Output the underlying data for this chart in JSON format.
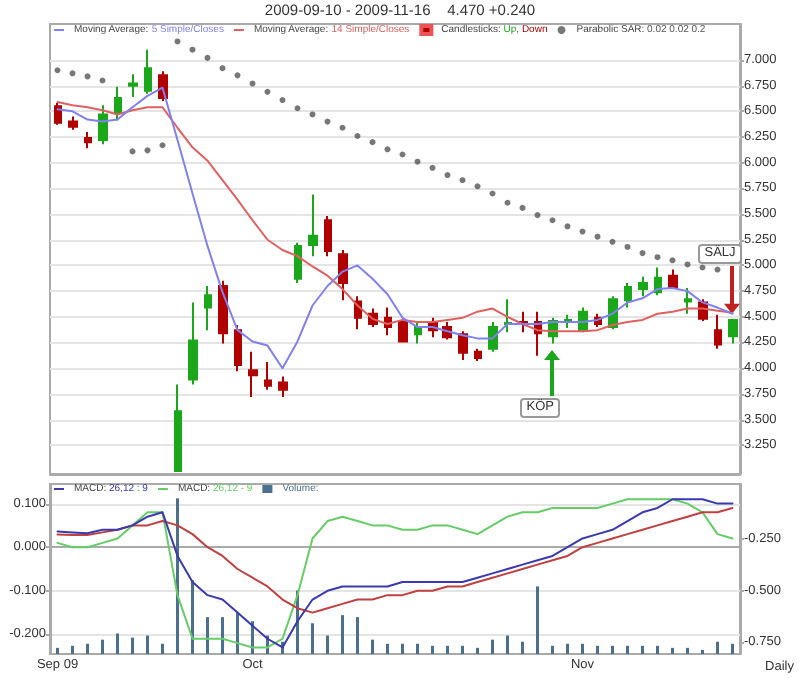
{
  "chart_data": [
    {
      "type": "candlestick",
      "title": "2009-09-10 - 2009-11-16    4.470 +0.240",
      "categories": [
        null,
        null,
        null,
        null,
        null,
        null,
        null,
        null,
        null,
        null,
        null,
        null,
        null,
        null,
        null,
        null,
        null,
        null,
        null,
        null,
        null,
        null,
        null,
        null,
        null,
        null,
        null,
        null,
        null,
        null,
        null,
        null,
        null,
        null,
        null,
        null,
        null,
        null,
        null,
        null,
        null,
        null,
        null,
        null,
        null,
        null
      ],
      "ylim": [
        2.97,
        7.35
      ],
      "yticks": [
        {
          "value": 3.25,
          "label": "3.250"
        },
        {
          "value": 3.5,
          "label": "3.500"
        },
        {
          "value": 3.75,
          "label": "3.750"
        },
        {
          "value": 4.0,
          "label": "4.000"
        },
        {
          "value": 4.25,
          "label": "4.250"
        },
        {
          "value": 4.5,
          "label": "4.500"
        },
        {
          "value": 4.75,
          "label": "4.750"
        },
        {
          "value": 5.0,
          "label": "5.000"
        },
        {
          "value": 5.25,
          "label": "5.250"
        },
        {
          "value": 5.5,
          "label": "5.500"
        },
        {
          "value": 5.75,
          "label": "5.750"
        },
        {
          "value": 6.0,
          "label": "6.000"
        },
        {
          "value": 6.25,
          "label": "6.250"
        },
        {
          "value": 6.5,
          "label": "6.500"
        },
        {
          "value": 6.75,
          "label": "6.750"
        },
        {
          "value": 7.0,
          "label": "7.000"
        }
      ],
      "tick_labels": "y",
      "grid": "y",
      "legend": "top left",
      "marker": "none",
      "series": [
        {
          "type": "line",
          "name": "Moving Average: 5 Simple/Closes",
          "color": "#8080f0",
          "values": [
            6.52,
            6.5,
            6.42,
            6.4,
            6.42,
            6.54,
            6.65,
            6.73,
            6.22,
            5.7,
            5.19,
            4.74,
            4.37,
            4.26,
            4.22,
            4.0,
            4.26,
            4.61,
            4.8,
            4.94,
            5.0,
            4.87,
            4.72,
            4.49,
            4.4,
            4.4,
            4.36,
            4.32,
            4.29,
            4.29,
            4.43,
            4.43,
            4.43,
            4.45,
            4.45,
            4.45,
            4.47,
            4.53,
            4.64,
            4.68,
            4.77,
            4.78,
            4.75,
            4.64,
            4.59,
            4.53
          ]
        },
        {
          "type": "line",
          "name": "Moving Average: 14 Simple/Closes",
          "color": "#e06060",
          "values": [
            6.59,
            6.56,
            6.54,
            6.51,
            6.47,
            6.51,
            6.54,
            6.54,
            6.34,
            6.15,
            6.02,
            5.83,
            5.64,
            5.44,
            5.25,
            5.15,
            5.09,
            4.99,
            4.9,
            4.77,
            4.61,
            4.48,
            4.43,
            4.47,
            4.45,
            4.45,
            4.47,
            4.49,
            4.55,
            4.58,
            4.5,
            4.43,
            4.37,
            4.36,
            4.36,
            4.36,
            4.37,
            4.42,
            4.45,
            4.47,
            4.53,
            4.55,
            4.58,
            4.58,
            4.56,
            4.54
          ]
        },
        {
          "name": "Candlesticks: Up, Down",
          "colors": [
            "#b00000",
            "#b00000",
            "#b00000",
            "#1aa81a",
            "#1aa81a",
            "#1aa81a",
            "#1aa81a",
            "#b00000",
            "#1aa81a",
            "#1aa81a",
            "#1aa81a",
            "#b00000",
            "#b00000",
            "#b00000",
            "#b00000",
            "#b00000",
            "#1aa81a",
            "#1aa81a",
            "#b00000",
            "#b00000",
            "#b00000",
            "#b00000",
            "#b00000",
            "#b00000",
            "#1aa81a",
            "#b00000",
            "#b00000",
            "#b00000",
            "#b00000",
            "#1aa81a",
            "#1aa81a",
            "#b00000",
            "#b00000",
            "#1aa81a",
            "#1aa81a",
            "#1aa81a",
            "#b00000",
            "#1aa81a",
            "#1aa81a",
            "#1aa81a",
            "#1aa81a",
            "#b00000",
            "#1aa81a",
            "#b00000",
            "#b00000",
            "#1aa81a"
          ],
          "ohlc": [
            [
              6.55,
              6.58,
              6.37,
              6.39
            ],
            [
              6.4,
              6.45,
              6.32,
              6.35
            ],
            [
              6.24,
              6.3,
              6.14,
              6.2
            ],
            [
              6.22,
              6.56,
              6.18,
              6.47
            ],
            [
              6.49,
              6.74,
              6.41,
              6.63
            ],
            [
              6.75,
              6.86,
              6.64,
              6.77
            ],
            [
              6.7,
              7.1,
              6.67,
              6.92
            ],
            [
              6.85,
              6.89,
              6.6,
              6.63
            ],
            [
              3.0,
              3.84,
              3.0,
              3.58
            ],
            [
              3.89,
              4.64,
              3.84,
              4.27
            ],
            [
              4.59,
              4.8,
              4.37,
              4.71
            ],
            [
              4.8,
              4.85,
              4.24,
              4.34
            ],
            [
              4.37,
              4.42,
              3.97,
              4.03
            ],
            [
              3.98,
              4.16,
              3.72,
              3.93
            ],
            [
              3.88,
              4.06,
              3.79,
              3.83
            ],
            [
              3.86,
              3.92,
              3.72,
              3.79
            ],
            [
              4.87,
              5.22,
              4.83,
              5.19
            ],
            [
              5.2,
              5.69,
              5.09,
              5.29
            ],
            [
              5.44,
              5.48,
              5.09,
              5.14
            ],
            [
              5.11,
              5.15,
              4.66,
              4.83
            ],
            [
              4.65,
              4.7,
              4.38,
              4.49
            ],
            [
              4.53,
              4.58,
              4.4,
              4.43
            ],
            [
              4.49,
              4.59,
              4.32,
              4.4
            ],
            [
              4.45,
              4.49,
              4.26,
              4.26
            ],
            [
              4.33,
              4.45,
              4.24,
              4.4
            ],
            [
              4.45,
              4.49,
              4.3,
              4.37
            ],
            [
              4.4,
              4.45,
              4.28,
              4.3
            ],
            [
              4.33,
              4.36,
              4.08,
              4.15
            ],
            [
              4.16,
              4.19,
              4.07,
              4.1
            ],
            [
              4.19,
              4.45,
              4.16,
              4.4
            ],
            [
              4.43,
              4.67,
              4.35,
              4.44
            ],
            [
              4.45,
              4.55,
              4.35,
              4.43
            ],
            [
              4.45,
              4.55,
              4.12,
              4.34
            ],
            [
              4.31,
              4.49,
              4.24,
              4.46
            ],
            [
              4.45,
              4.52,
              4.39,
              4.47
            ],
            [
              4.37,
              4.59,
              4.35,
              4.55
            ],
            [
              4.49,
              4.53,
              4.4,
              4.43
            ],
            [
              4.4,
              4.7,
              4.38,
              4.67
            ],
            [
              4.66,
              4.83,
              4.59,
              4.79
            ],
            [
              4.77,
              4.89,
              4.7,
              4.83
            ],
            [
              4.74,
              4.98,
              4.71,
              4.88
            ],
            [
              4.9,
              4.96,
              4.78,
              4.79
            ],
            [
              4.65,
              4.78,
              4.53,
              4.67
            ],
            [
              4.64,
              4.67,
              4.46,
              4.48
            ],
            [
              4.37,
              4.52,
              4.19,
              4.23
            ],
            [
              4.31,
              4.48,
              4.24,
              4.47
            ]
          ]
        },
        {
          "type": "scatter",
          "name": "Parabolic SAR: 0.02 0.02 0.2",
          "color": "#555555",
          "marker": "circle",
          "values": [
            6.9,
            6.87,
            6.84,
            6.8,
            null,
            6.11,
            6.12,
            6.17,
            7.18,
            7.1,
            7.02,
            6.92,
            6.85,
            6.77,
            6.69,
            6.61,
            6.53,
            6.47,
            6.4,
            6.34,
            6.26,
            6.2,
            6.13,
            6.08,
            6.01,
            5.95,
            5.88,
            5.83,
            5.77,
            5.7,
            5.61,
            5.56,
            5.49,
            5.44,
            5.38,
            5.33,
            5.28,
            5.23,
            5.18,
            5.12,
            5.08,
            5.05,
            5.01,
            4.98,
            4.96,
            null
          ]
        }
      ],
      "annotations": [
        {
          "text": "KÖP",
          "y": 3.61
        },
        {
          "text": "SÄLJ",
          "y": 5.12
        }
      ]
    },
    {
      "type": "line",
      "categories": [
        "Sep 09",
        null,
        null,
        null,
        null,
        null,
        null,
        null,
        null,
        null,
        null,
        null,
        null,
        "Oct",
        null,
        null,
        null,
        null,
        null,
        null,
        null,
        null,
        null,
        null,
        null,
        null,
        null,
        null,
        null,
        null,
        null,
        null,
        null,
        null,
        null,
        "Nov",
        null,
        null,
        null,
        null,
        null,
        null,
        null,
        null,
        null,
        null
      ],
      "ylim": [
        -0.245,
        0.145
      ],
      "yticks": [
        {
          "value": -0.2,
          "label": "-0.200"
        },
        {
          "value": -0.1,
          "label": "-0.100"
        },
        {
          "value": 0,
          "label": "0.000"
        },
        {
          "value": 0.1,
          "label": "0.100"
        }
      ],
      "y2lim": [
        -0.81,
        0.02
      ],
      "y2ticks": [
        {
          "value": -0.75,
          "label": "-0.750"
        },
        {
          "value": -0.5,
          "label": "-0.500"
        },
        {
          "value": -0.25,
          "label": "-0.250"
        }
      ],
      "grid": "y",
      "legend": "top left",
      "marker": "none",
      "series": [
        {
          "name": "MACD: 26,12 : 9",
          "color": "#3a3ab0",
          "values": [
            0.036,
            0.034,
            0.032,
            0.04,
            0.04,
            0.05,
            0.07,
            0.08,
            -0.02,
            -0.08,
            -0.11,
            -0.12,
            -0.15,
            -0.18,
            -0.21,
            -0.23,
            -0.17,
            -0.12,
            -0.1,
            -0.09,
            -0.09,
            -0.09,
            -0.09,
            -0.08,
            -0.08,
            -0.08,
            -0.08,
            -0.08,
            -0.07,
            -0.06,
            -0.05,
            -0.04,
            -0.03,
            -0.02,
            0.0,
            0.02,
            0.03,
            0.04,
            0.06,
            0.08,
            0.09,
            0.11,
            0.11,
            0.11,
            0.1,
            0.1
          ]
        },
        {
          "color": "#c04040",
          "values": [
            0.029,
            0.028,
            0.028,
            0.034,
            0.04,
            0.05,
            0.05,
            0.06,
            0.05,
            0.03,
            0.0,
            -0.02,
            -0.05,
            -0.07,
            -0.09,
            -0.12,
            -0.14,
            -0.15,
            -0.14,
            -0.13,
            -0.12,
            -0.12,
            -0.11,
            -0.11,
            -0.1,
            -0.1,
            -0.09,
            -0.09,
            -0.08,
            -0.07,
            -0.06,
            -0.05,
            -0.04,
            -0.03,
            -0.02,
            0.0,
            0.01,
            0.02,
            0.03,
            0.04,
            0.05,
            0.06,
            0.07,
            0.08,
            0.08,
            0.09
          ]
        },
        {
          "name": "MACD: 26,12 - 9",
          "color": "#66cc66",
          "values": [
            0.01,
            0.0,
            0.0,
            0.01,
            0.02,
            0.05,
            0.08,
            0.08,
            -0.11,
            -0.21,
            -0.21,
            -0.21,
            -0.22,
            -0.23,
            -0.23,
            -0.21,
            -0.11,
            0.02,
            0.06,
            0.07,
            0.06,
            0.05,
            0.05,
            0.04,
            0.04,
            0.05,
            0.05,
            0.04,
            0.03,
            0.05,
            0.07,
            0.08,
            0.08,
            0.09,
            0.09,
            0.09,
            0.09,
            0.1,
            0.11,
            0.11,
            0.11,
            0.11,
            0.1,
            0.08,
            0.03,
            0.02
          ]
        },
        {
          "type": "bar",
          "axis": "y2",
          "name": "Volume:",
          "color": "#4a6f8f",
          "base": [
            -0.81,
            -0.81,
            -0.81,
            -0.81,
            -0.81,
            -0.81,
            -0.81,
            -0.81,
            -0.81,
            -0.81,
            -0.81,
            -0.81,
            -0.81,
            -0.81,
            -0.81,
            -0.81,
            -0.81,
            -0.81,
            -0.81,
            -0.81,
            -0.81,
            -0.81,
            -0.81,
            -0.81,
            -0.81,
            -0.81,
            -0.81,
            -0.81,
            -0.81,
            -0.81,
            -0.81,
            -0.81,
            -0.81,
            -0.81,
            -0.81,
            -0.81,
            -0.81,
            -0.81,
            -0.81,
            -0.81,
            -0.81,
            -0.81,
            -0.81,
            -0.81,
            -0.81,
            -0.81
          ],
          "values": [
            0.03,
            0.04,
            0.05,
            0.07,
            0.1,
            0.08,
            0.09,
            0.05,
            0.76,
            0.36,
            0.18,
            0.18,
            0.2,
            0.16,
            0.09,
            0.06,
            0.31,
            0.15,
            0.09,
            0.19,
            0.18,
            0.07,
            0.05,
            0.05,
            0.05,
            0.04,
            0.04,
            0.04,
            0.03,
            0.07,
            0.09,
            0.06,
            0.33,
            0.04,
            0.05,
            0.05,
            0.04,
            0.04,
            0.04,
            0.04,
            0.04,
            0.03,
            0.03,
            0.02,
            0.06,
            0.05
          ]
        }
      ],
      "annotations": [
        "Daily"
      ]
    }
  ]
}
